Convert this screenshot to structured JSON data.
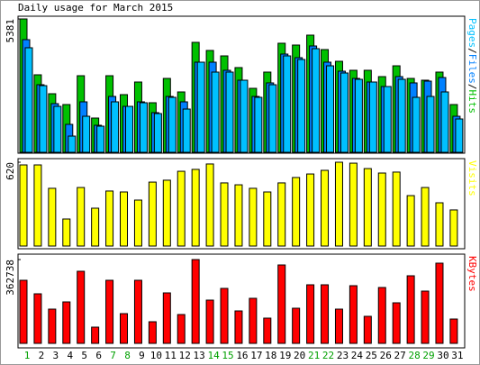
{
  "chart_data": {
    "type": "bar",
    "title": "Daily usage for March 2015",
    "categories": [
      "1",
      "2",
      "3",
      "4",
      "5",
      "6",
      "7",
      "8",
      "9",
      "10",
      "11",
      "12",
      "13",
      "14",
      "15",
      "16",
      "17",
      "18",
      "19",
      "20",
      "21",
      "22",
      "23",
      "24",
      "25",
      "26",
      "27",
      "28",
      "29",
      "30",
      "31"
    ],
    "category_colors": [
      "#00a000",
      "#000000",
      "#000000",
      "#000000",
      "#000000",
      "#000000",
      "#00a000",
      "#00a000",
      "#000000",
      "#000000",
      "#000000",
      "#000000",
      "#000000",
      "#00a000",
      "#00a000",
      "#000000",
      "#000000",
      "#000000",
      "#000000",
      "#000000",
      "#00a000",
      "#00a000",
      "#000000",
      "#000000",
      "#000000",
      "#000000",
      "#000000",
      "#00a000",
      "#00a000",
      "#000000",
      "#000000"
    ],
    "legend_separator": "/",
    "panels": [
      {
        "ylim": [
          0,
          5381
        ],
        "yticks": [
          5381
        ],
        "series": [
          {
            "name": "Pages",
            "color": "#00c0ff",
            "values": [
              4218,
              2690,
              1854,
              654,
              1454,
              1054,
              2036,
              1854,
              2000,
              1563,
              2218,
              1745,
              3636,
              3236,
              3236,
              2909,
              2218,
              2727,
              3890,
              3745,
              4181,
              3490,
              3200,
              2945,
              2836,
              2654,
              2945,
              2218,
              2254,
              2436,
              1345
            ]
          },
          {
            "name": "Files",
            "color": "#0080ff",
            "values": [
              4545,
              2727,
              1963,
              1127,
              2036,
              1091,
              2254,
              1854,
              2036,
              1600,
              2254,
              2036,
              3636,
              3636,
              3309,
              2909,
              2254,
              2800,
              3963,
              3818,
              4290,
              3636,
              3272,
              2981,
              2836,
              2654,
              3054,
              2800,
              2872,
              3018,
              1454
            ]
          },
          {
            "name": "Hits",
            "color": "#00c000",
            "values": [
              5381,
              3127,
              2363,
              1927,
              3090,
              1382,
              3090,
              2327,
              2836,
              2000,
              2981,
              2436,
              4436,
              4109,
              3890,
              3418,
              2581,
              3236,
              4400,
              4327,
              4727,
              4145,
              3672,
              3309,
              3309,
              3054,
              3490,
              2981,
              2909,
              3236,
              1927
            ]
          }
        ]
      },
      {
        "ylim": [
          0,
          620
        ],
        "yticks": [
          620
        ],
        "series": [
          {
            "name": "Visits",
            "color": "#ffff00",
            "values": [
              600,
              600,
              427,
              200,
              433,
              280,
              407,
              400,
              340,
              473,
              487,
              553,
              567,
              607,
              467,
              453,
              427,
              400,
              467,
              507,
              533,
              560,
              620,
              613,
              573,
              540,
              547,
              373,
              433,
              320,
              267
            ]
          }
        ]
      },
      {
        "ylim": [
          0,
          362738
        ],
        "yticks": [
          362738
        ],
        "series": [
          {
            "name": "KBytes",
            "color": "#ff0000",
            "values": [
              273029,
              214523,
              148218,
              179420,
              312033,
              70208,
              273029,
              128717,
              273029,
              93611,
              218424,
              124814,
              362738,
              187221,
              237927,
              140417,
              195022,
              109213,
              339336,
              152119,
              253527,
              253527,
              148218,
              249626,
              117013,
              241828,
              175519,
              292531,
              226226,
              347137,
              105312
            ]
          }
        ]
      }
    ]
  }
}
